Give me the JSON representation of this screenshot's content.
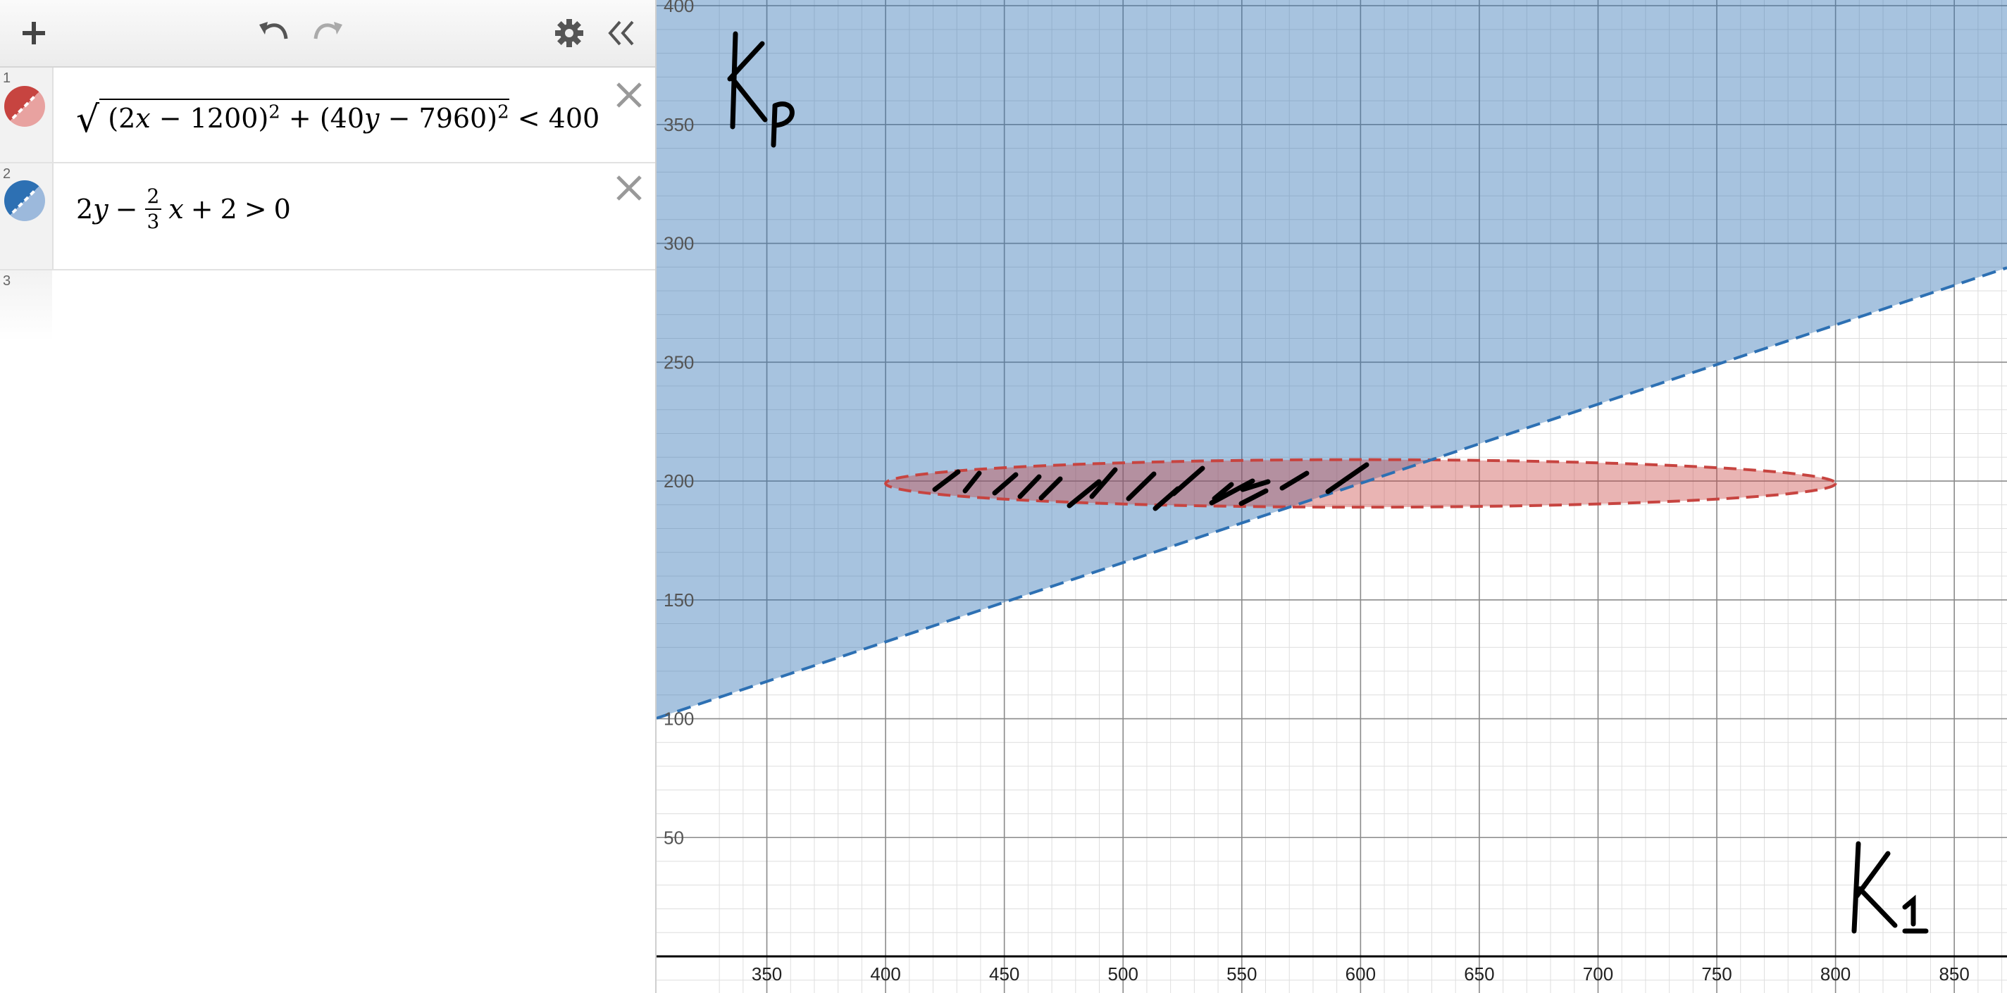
{
  "toolbar": {
    "add_icon": "plus-icon",
    "undo_icon": "undo-icon",
    "redo_icon": "redo-icon",
    "settings_icon": "gear-icon",
    "collapse_icon": "double-chevron-left-icon"
  },
  "expressions": [
    {
      "index": "1",
      "color": "#c74440",
      "fill": "#e8a2a0",
      "latex_parts": {
        "sqrt": "√",
        "lp1": "(",
        "a": "2",
        "x": "x",
        "minus1": "−",
        "c1": "1200",
        "rp1": ")",
        "sq1": "2",
        "plus": "+",
        "lp2": "(",
        "b": "40",
        "y": "y",
        "minus2": "−",
        "c2": "7960",
        "rp2": ")",
        "sq2": "2",
        "rel": "<",
        "rhs": "400"
      }
    },
    {
      "index": "2",
      "color": "#2d70b3",
      "fill": "#9cb9dc",
      "latex_parts": {
        "a": "2",
        "y": "y",
        "minus": "−",
        "num": "2",
        "den": "3",
        "x": "x",
        "plus": "+",
        "c": "2",
        "rel": ">",
        "rhs": "0"
      }
    },
    {
      "index": "3"
    }
  ],
  "graph": {
    "x_ticks": [
      "350",
      "400",
      "450",
      "500",
      "550",
      "600",
      "650",
      "700",
      "750",
      "800",
      "850"
    ],
    "y_ticks": [
      "50",
      "100",
      "150",
      "200",
      "250",
      "300",
      "350",
      "400"
    ],
    "annotations": {
      "top_left": "Kp",
      "bottom_right": "K1"
    }
  }
}
